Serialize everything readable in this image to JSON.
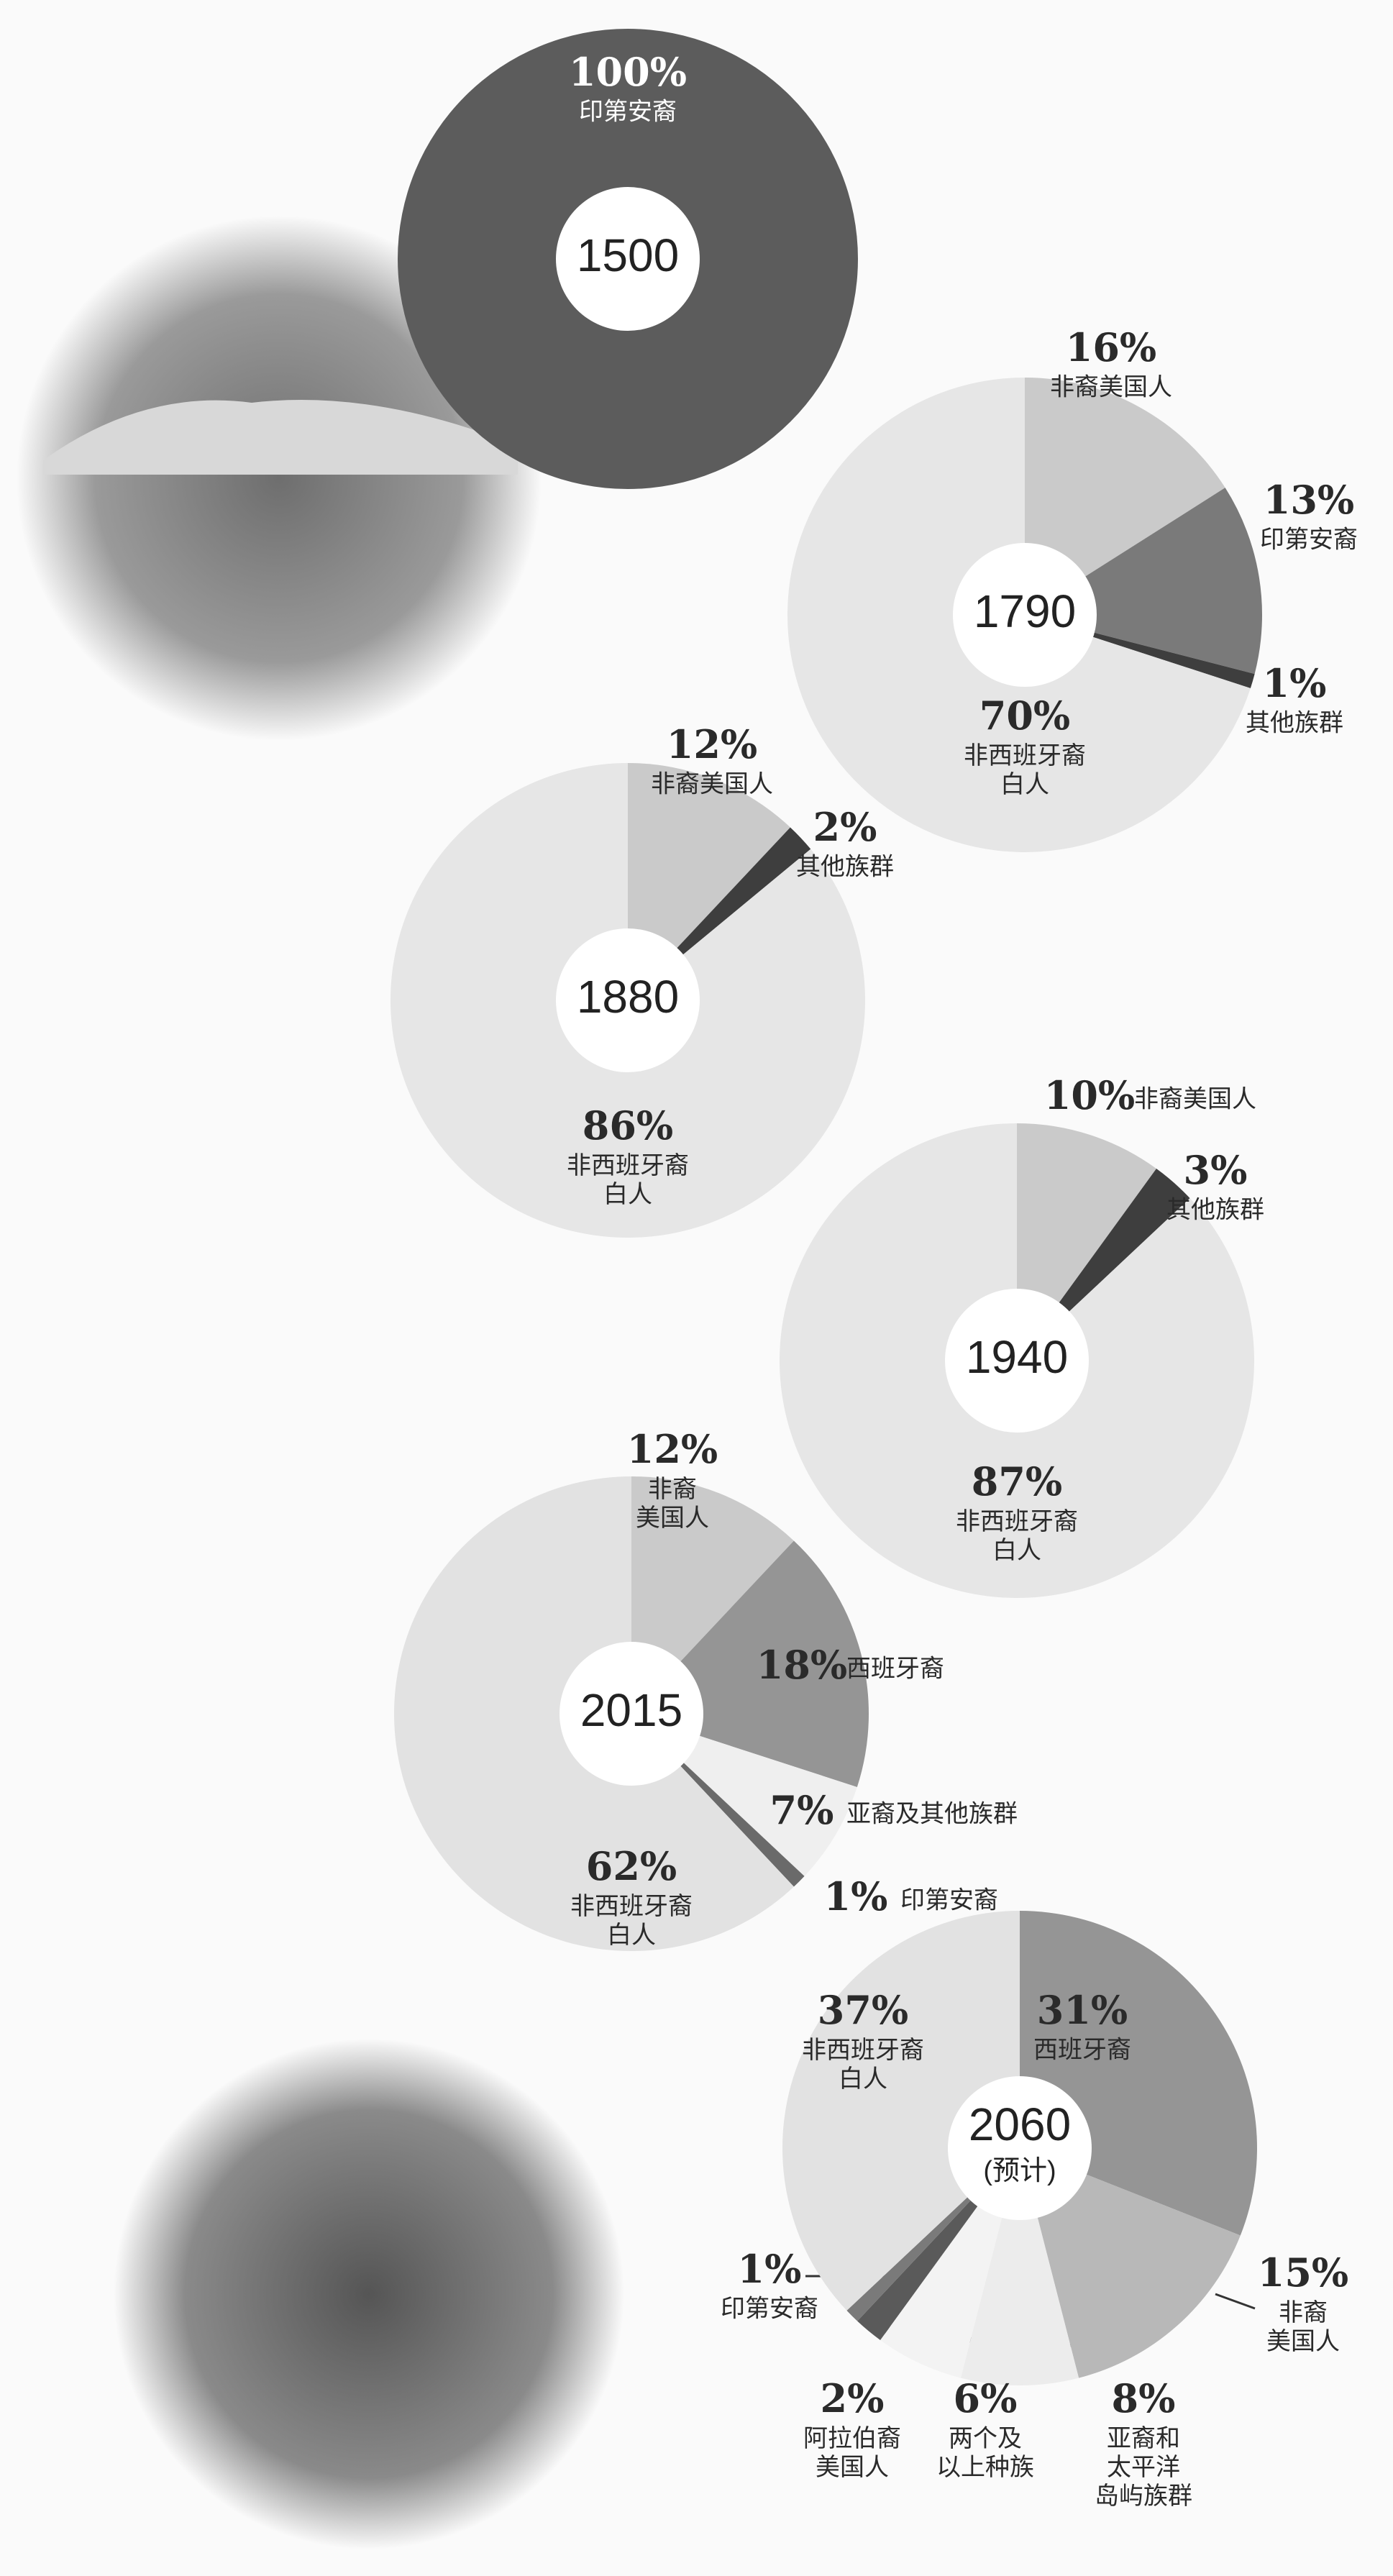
{
  "chart_data": [
    {
      "type": "pie",
      "title": "1500",
      "categories": [
        "印第安裔"
      ],
      "values": [
        100
      ],
      "value_labels": [
        "100%"
      ],
      "colors": [
        "#5c5c5c"
      ]
    },
    {
      "type": "pie",
      "title": "1790",
      "categories": [
        "非裔美国人",
        "印第安裔",
        "其他族群",
        "非西班牙裔\n白人"
      ],
      "values": [
        16,
        13,
        1,
        70
      ],
      "value_labels": [
        "16%",
        "13%",
        "1%",
        "70%"
      ],
      "colors": [
        "#cacaca",
        "#7a7a7a",
        "#3e3e3e",
        "#e6e6e6"
      ]
    },
    {
      "type": "pie",
      "title": "1880",
      "categories": [
        "非裔美国人",
        "其他族群",
        "非西班牙裔\n白人"
      ],
      "values": [
        12,
        2,
        86
      ],
      "value_labels": [
        "12%",
        "2%",
        "86%"
      ],
      "colors": [
        "#cacaca",
        "#3e3e3e",
        "#e6e6e6"
      ]
    },
    {
      "type": "pie",
      "title": "1940",
      "categories": [
        "非裔美国人",
        "其他族群",
        "非西班牙裔\n白人"
      ],
      "values": [
        10,
        3,
        87
      ],
      "value_labels": [
        "10%",
        "3%",
        "87%"
      ],
      "colors": [
        "#cacaca",
        "#3e3e3e",
        "#e6e6e6"
      ]
    },
    {
      "type": "pie",
      "title": "2015",
      "categories": [
        "非裔\n美国人",
        "西班牙裔",
        "亚裔及其他族群",
        "印第安裔",
        "非西班牙裔\n白人"
      ],
      "values": [
        12,
        18,
        7,
        1,
        62
      ],
      "value_labels": [
        "12%",
        "18%",
        "7%",
        "1%",
        "62%"
      ],
      "colors": [
        "#cacaca",
        "#959595",
        "#efefef",
        "#6a6a6a",
        "#e2e2e2"
      ]
    },
    {
      "type": "pie",
      "title": "2060\n(预计)",
      "categories": [
        "西班牙裔",
        "非裔\n美国人",
        "亚裔和\n太平洋\n岛屿族群",
        "两个及\n以上种族",
        "阿拉伯裔\n美国人",
        "印第安裔",
        "非西班牙裔\n白人"
      ],
      "values": [
        31,
        15,
        8,
        6,
        2,
        1,
        37
      ],
      "value_labels": [
        "31%",
        "15%",
        "8%",
        "6%",
        "2%",
        "1%",
        "37%"
      ],
      "colors": [
        "#959595",
        "#b8b8b8",
        "#ececec",
        "#f3f3f3",
        "#5a5a5a",
        "#7a7a7a",
        "#e2e2e2"
      ]
    }
  ]
}
